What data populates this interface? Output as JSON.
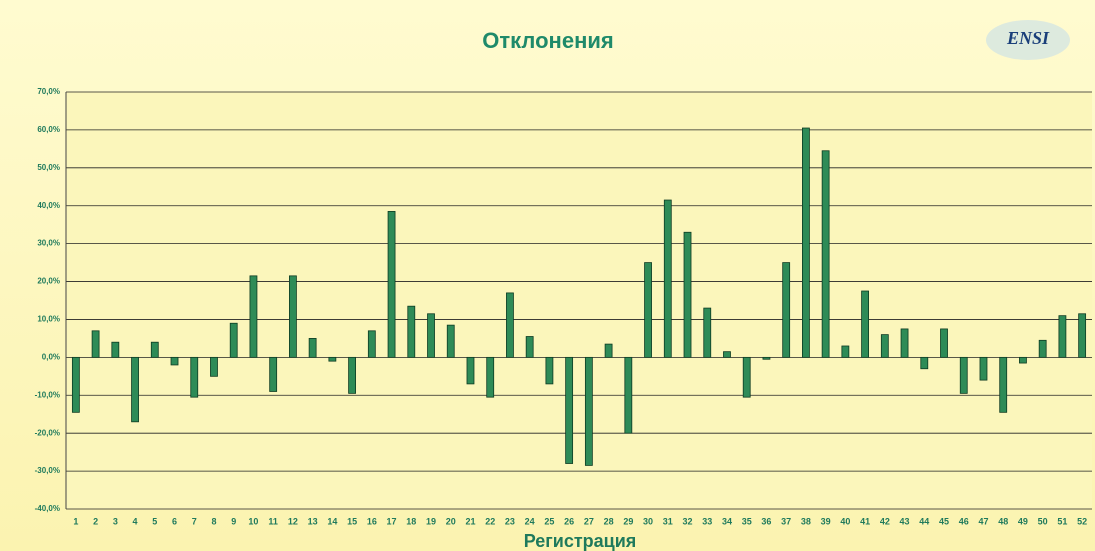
{
  "chart_data": {
    "type": "bar",
    "title": "Отклонения",
    "logo": "ENSI",
    "x_label": "Регистрация",
    "categories": [
      "1",
      "2",
      "3",
      "4",
      "5",
      "6",
      "7",
      "8",
      "9",
      "10",
      "11",
      "12",
      "13",
      "14",
      "15",
      "16",
      "17",
      "18",
      "19",
      "20",
      "21",
      "22",
      "23",
      "24",
      "25",
      "26",
      "27",
      "28",
      "29",
      "30",
      "31",
      "32",
      "33",
      "34",
      "35",
      "36",
      "37",
      "38",
      "39",
      "40",
      "41",
      "42",
      "43",
      "44",
      "45",
      "46",
      "47",
      "48",
      "49",
      "50",
      "51",
      "52"
    ],
    "values": [
      -14.5,
      7,
      4,
      -17,
      4,
      -2,
      -10.5,
      -5,
      9,
      21.5,
      -9,
      21.5,
      5,
      -1,
      -9.5,
      7,
      38.5,
      13.5,
      11.5,
      8.5,
      -7,
      -10.5,
      17,
      5.5,
      -7,
      -28,
      -28.5,
      3.5,
      -20,
      25,
      41.5,
      33,
      13,
      1.5,
      -10.5,
      -0.5,
      25,
      60.5,
      54.5,
      3,
      17.5,
      6,
      7.5,
      -3,
      7.5,
      -9.5,
      -6,
      -14.5,
      -1.5,
      4.5,
      11,
      11.5
    ],
    "color": "#2e8b57",
    "ylim": [
      -40,
      70
    ],
    "yticks": [
      {
        "value": -40,
        "label": "-40,0%"
      },
      {
        "value": -30,
        "label": "-30,0%"
      },
      {
        "value": -20,
        "label": "-20,0%"
      },
      {
        "value": -10,
        "label": "-10,0%"
      },
      {
        "value": 0,
        "label": "0,0%"
      },
      {
        "value": 10,
        "label": "10,0%"
      },
      {
        "value": 20,
        "label": "20,0%"
      },
      {
        "value": 30,
        "label": "30,0%"
      },
      {
        "value": 40,
        "label": "40,0%"
      },
      {
        "value": 50,
        "label": "50,0%"
      },
      {
        "value": 60,
        "label": "60,0%"
      },
      {
        "value": 70,
        "label": "70,0%"
      }
    ],
    "grid": true
  }
}
